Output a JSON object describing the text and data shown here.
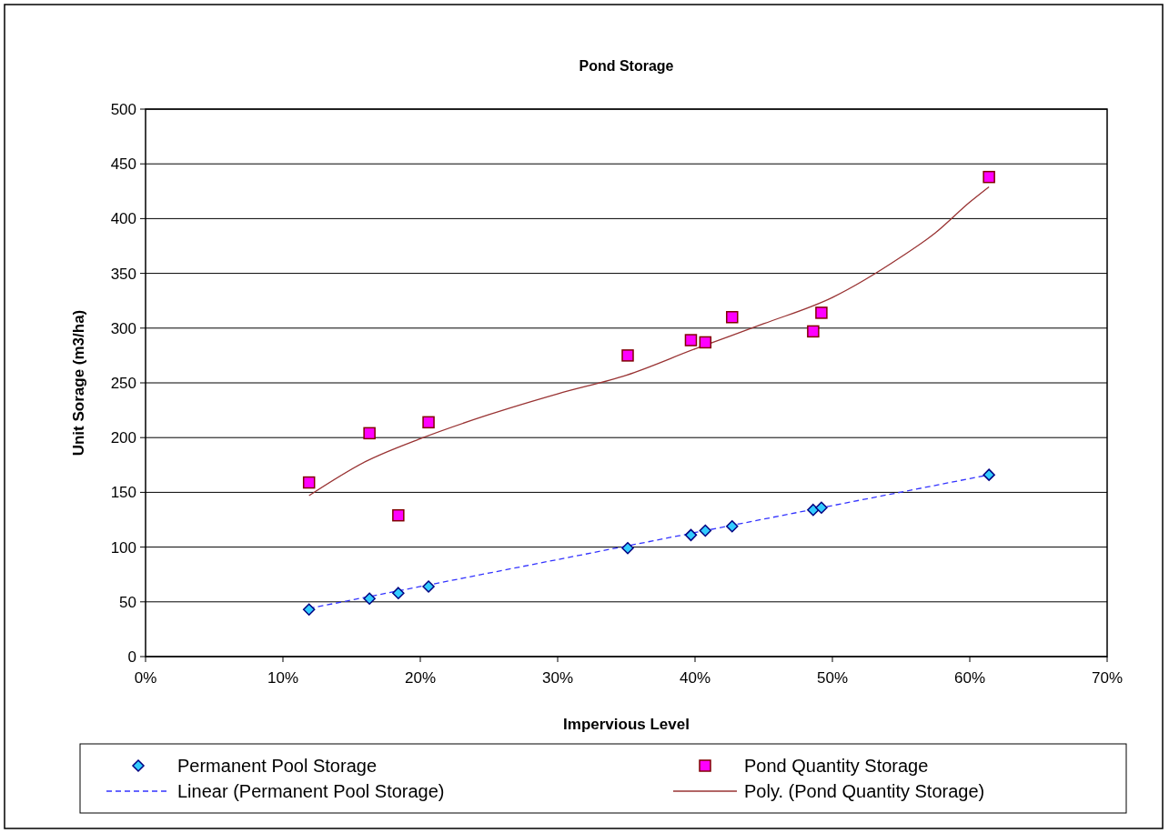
{
  "chart_data": {
    "type": "scatter",
    "title": "Pond Storage",
    "xlabel": "Impervious Level",
    "ylabel": "Unit Sorage (m3/ha)",
    "xlim": [
      0,
      70
    ],
    "xticks": [
      {
        "value": 0,
        "label": "0%"
      },
      {
        "value": 10,
        "label": "10%"
      },
      {
        "value": 20,
        "label": "20%"
      },
      {
        "value": 30,
        "label": "30%"
      },
      {
        "value": 40,
        "label": "40%"
      },
      {
        "value": 50,
        "label": "50%"
      },
      {
        "value": 60,
        "label": "60%"
      },
      {
        "value": 70,
        "label": "70%"
      }
    ],
    "ylim": [
      0,
      500
    ],
    "yticks": [
      0,
      50,
      100,
      150,
      200,
      250,
      300,
      350,
      400,
      450,
      500
    ],
    "grid": "y",
    "legend": "bottom",
    "series": [
      {
        "name": "Permanent Pool Storage",
        "marker": "diamond",
        "color": "#33ccff",
        "x": [
          11.9,
          16.3,
          18.4,
          20.6,
          35.1,
          39.7,
          40.75,
          42.7,
          48.6,
          49.2,
          61.4
        ],
        "values": [
          43,
          53,
          58,
          64,
          99,
          111,
          115,
          119,
          134,
          136,
          166
        ]
      },
      {
        "name": "Pond Quantity Storage",
        "marker": "square",
        "color": "#ff00ff",
        "x": [
          11.9,
          16.3,
          18.4,
          20.6,
          35.1,
          39.7,
          40.75,
          42.7,
          48.6,
          49.2,
          61.4
        ],
        "values": [
          159,
          204,
          129,
          214,
          275,
          289,
          287,
          310,
          297,
          314,
          438
        ]
      },
      {
        "name": "Linear (Permanent Pool Storage)",
        "type": "line",
        "marker": "none",
        "line_style": "dashed",
        "color": "#3333ff",
        "x": [
          11.9,
          61.4
        ],
        "values": [
          44,
          166
        ]
      },
      {
        "name": "Poly. (Pond Quantity Storage)",
        "type": "line",
        "marker": "none",
        "line_style": "solid",
        "color": "#993333",
        "x": [
          11.9,
          16,
          20,
          25,
          30,
          35,
          40,
          45,
          50,
          55,
          57.5,
          60,
          61.4
        ],
        "values": [
          147,
          178,
          199,
          221,
          240,
          257,
          281,
          304,
          328,
          365,
          387,
          415,
          429
        ]
      }
    ]
  }
}
